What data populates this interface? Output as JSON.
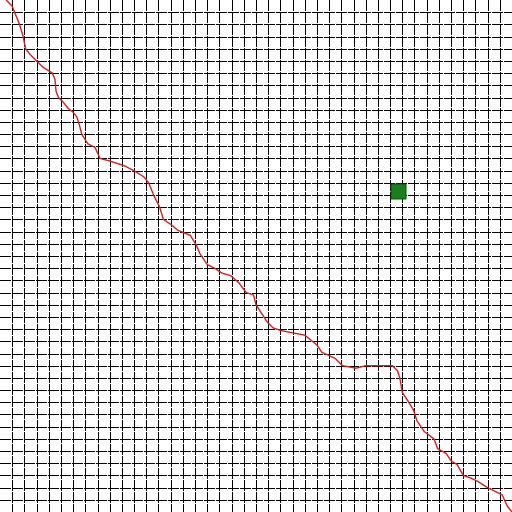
{
  "grid": {
    "columns": 42,
    "rows": 42,
    "line_color": "#000000",
    "background_color": "#ffffff"
  },
  "target_cell": {
    "col": 32,
    "row": 15,
    "color": "#1a7f1a",
    "border_color": "#0d4d0d"
  },
  "path": {
    "color": "#cc2222",
    "points": [
      [
        0.5,
        0.0
      ],
      [
        1.0,
        0.5
      ],
      [
        1.2,
        1.0
      ],
      [
        1.4,
        1.5
      ],
      [
        1.6,
        2.0
      ],
      [
        1.9,
        3.0
      ],
      [
        2.1,
        4.0
      ],
      [
        2.5,
        4.5
      ],
      [
        3.0,
        5.0
      ],
      [
        3.5,
        5.5
      ],
      [
        4.3,
        6.0
      ],
      [
        4.5,
        6.5
      ],
      [
        4.6,
        7.5
      ],
      [
        4.8,
        8.0
      ],
      [
        5.2,
        8.4
      ],
      [
        5.6,
        8.9
      ],
      [
        6.0,
        9.2
      ],
      [
        6.3,
        9.6
      ],
      [
        6.5,
        10.2
      ],
      [
        6.7,
        11.0
      ],
      [
        7.2,
        11.8
      ],
      [
        7.8,
        12.1
      ],
      [
        8.2,
        13.0
      ],
      [
        9.0,
        13.2
      ],
      [
        10.2,
        13.6
      ],
      [
        11.0,
        14.0
      ],
      [
        11.8,
        14.5
      ],
      [
        12.2,
        15.0
      ],
      [
        12.6,
        16.0
      ],
      [
        13.1,
        17.0
      ],
      [
        13.4,
        18.0
      ],
      [
        14.0,
        18.4
      ],
      [
        14.6,
        18.9
      ],
      [
        15.6,
        19.3
      ],
      [
        16.1,
        20.1
      ],
      [
        16.4,
        20.8
      ],
      [
        17.0,
        21.7
      ],
      [
        17.6,
        22.0
      ],
      [
        18.2,
        22.4
      ],
      [
        18.9,
        22.6
      ],
      [
        19.6,
        23.2
      ],
      [
        20.2,
        24.0
      ],
      [
        20.8,
        24.2
      ],
      [
        21.0,
        25.0
      ],
      [
        21.9,
        26.4
      ],
      [
        22.4,
        26.9
      ],
      [
        23.0,
        27.1
      ],
      [
        24.0,
        27.3
      ],
      [
        25.0,
        27.5
      ],
      [
        26.0,
        28.3
      ],
      [
        26.4,
        28.9
      ],
      [
        27.5,
        29.4
      ],
      [
        28.1,
        30.0
      ],
      [
        29.2,
        30.2
      ],
      [
        30.0,
        30.0
      ],
      [
        31.0,
        30.0
      ],
      [
        32.2,
        30.0
      ],
      [
        32.6,
        30.4
      ],
      [
        32.8,
        31.0
      ],
      [
        33.0,
        32.2
      ],
      [
        33.4,
        32.8
      ],
      [
        33.9,
        33.6
      ],
      [
        34.2,
        34.5
      ],
      [
        34.8,
        35.4
      ],
      [
        35.2,
        35.7
      ],
      [
        35.6,
        36.0
      ],
      [
        35.9,
        36.8
      ],
      [
        36.6,
        37.2
      ],
      [
        37.0,
        37.8
      ],
      [
        37.5,
        38.1
      ],
      [
        38.0,
        39.0
      ],
      [
        38.6,
        39.2
      ],
      [
        39.2,
        39.5
      ],
      [
        40.0,
        40.0
      ],
      [
        40.6,
        40.3
      ],
      [
        41.2,
        40.6
      ],
      [
        41.6,
        41.5
      ],
      [
        42.0,
        42.0
      ]
    ]
  }
}
